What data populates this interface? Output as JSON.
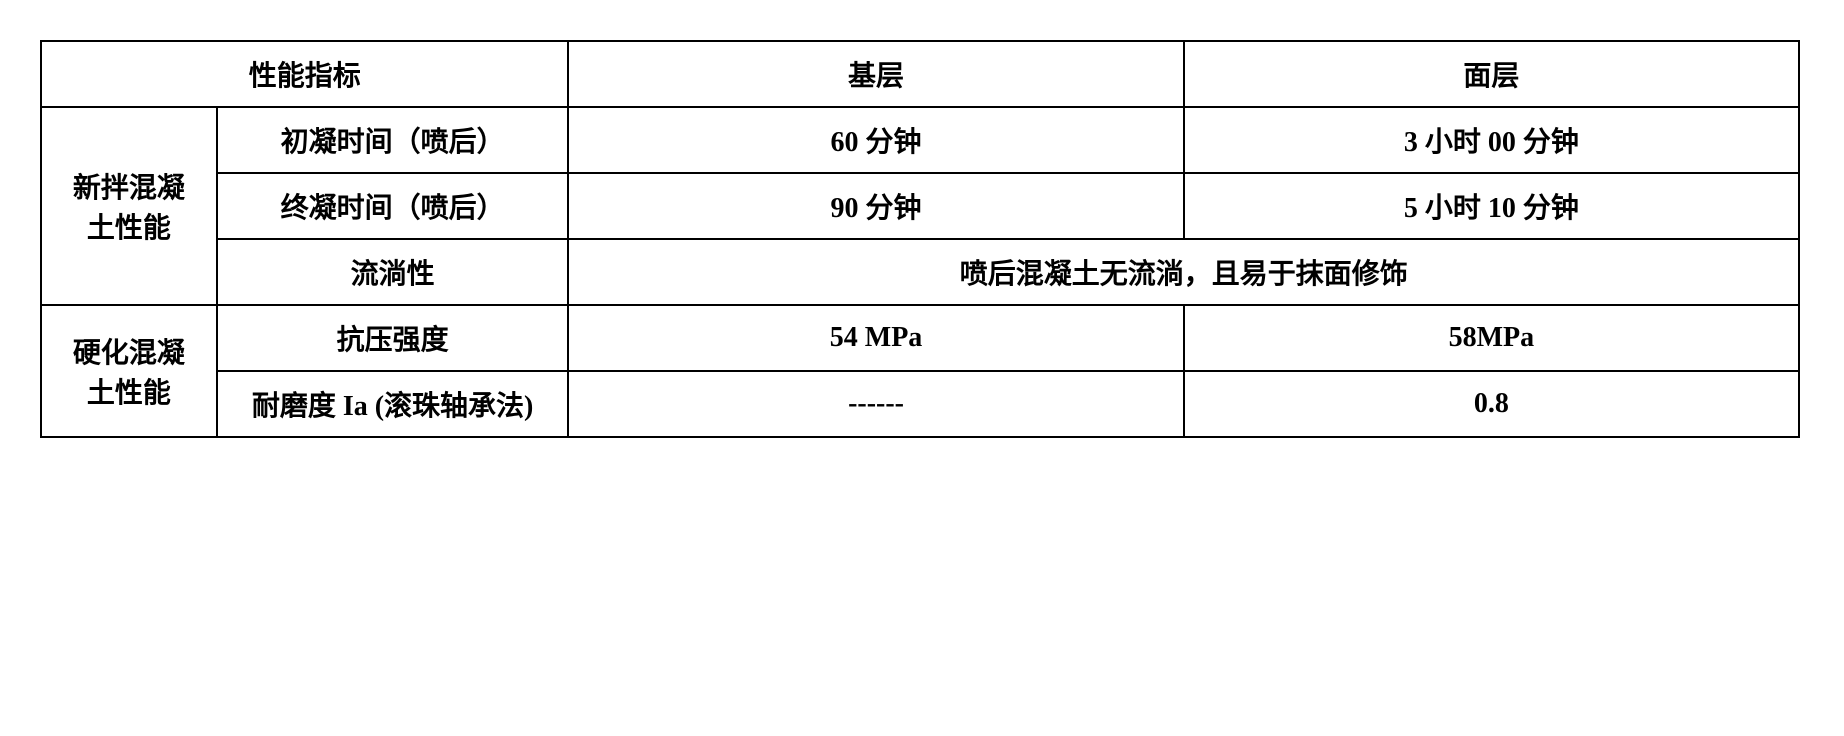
{
  "table": {
    "headers": {
      "performance_index": "性能指标",
      "base_layer": "基层",
      "surface_layer": "面层"
    },
    "categories": {
      "fresh_concrete": "新拌混凝土性能",
      "hardened_concrete": "硬化混凝土性能"
    },
    "rows": {
      "initial_set": {
        "label": "初凝时间（喷后）",
        "base": "60 分钟",
        "surface": "3 小时 00 分钟"
      },
      "final_set": {
        "label": "终凝时间（喷后）",
        "base": "90 分钟",
        "surface": "5 小时 10 分钟"
      },
      "flowability": {
        "label": "流淌性",
        "merged": "喷后混凝土无流淌，且易于抹面修饰"
      },
      "compressive_strength": {
        "label": "抗压强度",
        "base": "54 MPa",
        "surface": "58MPa"
      },
      "abrasion": {
        "label": "耐磨度 Ia (滚珠轴承法)",
        "base": "------",
        "surface": "0.8"
      }
    },
    "styling": {
      "border_color": "#000000",
      "border_width": 2,
      "background_color": "#ffffff",
      "font_family": "SimSun",
      "font_size": 28,
      "font_weight": "bold",
      "text_align": "center",
      "column_widths_percent": [
        10,
        20,
        35,
        35
      ]
    }
  }
}
